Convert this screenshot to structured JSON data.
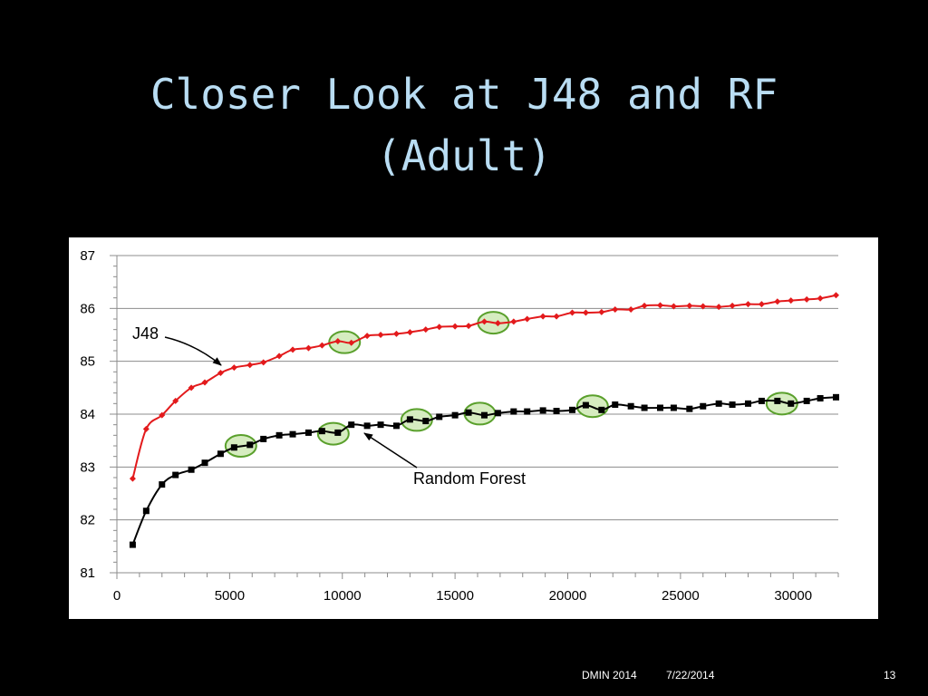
{
  "slide": {
    "title_line1": "Closer Look at J48 and RF",
    "title_line2": "(Adult)"
  },
  "footer": {
    "conference": "DMIN 2014",
    "date": "7/22/2014",
    "page_number": "13"
  },
  "colors": {
    "background": "#000000",
    "title": "#b9ddf3",
    "j48": "#e31a1c",
    "random_forest": "#000000",
    "highlight_fill": "#d6ecc0",
    "highlight_stroke": "#5aa02c"
  },
  "chart_data": {
    "type": "line",
    "title": "",
    "xlabel": "",
    "ylabel": "",
    "xlim": [
      0,
      32000
    ],
    "ylim": [
      81,
      87
    ],
    "xticks": [
      0,
      5000,
      10000,
      15000,
      20000,
      25000,
      30000
    ],
    "yticks": [
      81,
      82,
      83,
      84,
      85,
      86,
      87
    ],
    "grid": "horizontal",
    "x": [
      700,
      1300,
      2000,
      2600,
      3300,
      3900,
      4600,
      5200,
      5900,
      6500,
      7200,
      7800,
      8500,
      9100,
      9800,
      10400,
      11100,
      11700,
      12400,
      13000,
      13700,
      14300,
      15000,
      15600,
      16300,
      16900,
      17600,
      18200,
      18900,
      19500,
      20200,
      20800,
      21500,
      22100,
      22800,
      23400,
      24100,
      24700,
      25400,
      26000,
      26700,
      27300,
      28000,
      28600,
      29300,
      29900,
      30600,
      31200,
      31900
    ],
    "series": [
      {
        "name": "J48",
        "marker": "diamond",
        "values": [
          82.78,
          83.72,
          83.98,
          84.25,
          84.5,
          84.6,
          84.78,
          84.88,
          84.93,
          84.98,
          85.1,
          85.22,
          85.25,
          85.3,
          85.38,
          85.35,
          85.48,
          85.5,
          85.52,
          85.55,
          85.6,
          85.65,
          85.66,
          85.67,
          85.75,
          85.72,
          85.75,
          85.8,
          85.85,
          85.85,
          85.92,
          85.92,
          85.93,
          85.98,
          85.98,
          86.05,
          86.06,
          86.04,
          86.05,
          86.04,
          86.03,
          86.05,
          86.08,
          86.08,
          86.13,
          86.15,
          86.17,
          86.19,
          86.25
        ]
      },
      {
        "name": "Random Forest",
        "marker": "square",
        "values": [
          81.53,
          82.17,
          82.67,
          82.85,
          82.95,
          83.08,
          83.25,
          83.37,
          83.42,
          83.53,
          83.6,
          83.62,
          83.65,
          83.68,
          83.65,
          83.8,
          83.78,
          83.8,
          83.78,
          83.9,
          83.87,
          83.95,
          83.98,
          84.03,
          83.98,
          84.02,
          84.05,
          84.05,
          84.07,
          84.06,
          84.08,
          84.17,
          84.08,
          84.18,
          84.15,
          84.12,
          84.12,
          84.12,
          84.1,
          84.15,
          84.2,
          84.18,
          84.2,
          84.25,
          84.25,
          84.2,
          84.25,
          84.3,
          84.32
        ]
      }
    ],
    "annotations": [
      {
        "text": "J48",
        "target_series": "J48"
      },
      {
        "text": "Random Forest",
        "target_series": "Random Forest"
      }
    ],
    "highlighted_points": [
      {
        "series": "J48",
        "x": 10100,
        "y": 85.36
      },
      {
        "series": "J48",
        "x": 16700,
        "y": 85.73
      },
      {
        "series": "Random Forest",
        "x": 5500,
        "y": 83.4
      },
      {
        "series": "Random Forest",
        "x": 9600,
        "y": 83.63
      },
      {
        "series": "Random Forest",
        "x": 13300,
        "y": 83.89
      },
      {
        "series": "Random Forest",
        "x": 16100,
        "y": 84.01
      },
      {
        "series": "Random Forest",
        "x": 21100,
        "y": 84.15
      },
      {
        "series": "Random Forest",
        "x": 29500,
        "y": 84.2
      }
    ]
  }
}
